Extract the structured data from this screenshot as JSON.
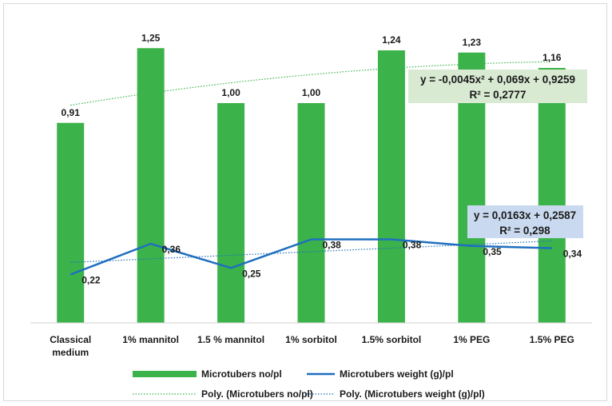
{
  "chart_data": {
    "type": "bar",
    "categories": [
      "Classical medium",
      "1% mannitol",
      "1.5 % mannitol",
      "1% sorbitol",
      "1.5% sorbitol",
      "1% PEG",
      "1.5% PEG"
    ],
    "category_lines": [
      [
        "Classical",
        "medium"
      ],
      [
        "1% mannitol"
      ],
      [
        "1.5 % mannitol"
      ],
      [
        "1% sorbitol"
      ],
      [
        "1.5% sorbitol"
      ],
      [
        "1% PEG"
      ],
      [
        "1.5% PEG"
      ]
    ],
    "ylim": [
      0,
      1.4
    ],
    "grid": false,
    "legend_position": "bottom",
    "series": [
      {
        "name": "Microtubers no/pl",
        "type": "bar",
        "color": "#3cb34a",
        "values": [
          0.91,
          1.25,
          1.0,
          1.0,
          1.24,
          1.23,
          1.16
        ],
        "value_labels": [
          "0,91",
          "1,25",
          "1,00",
          "1,00",
          "1,24",
          "1,23",
          "1,16"
        ]
      },
      {
        "name": "Microtubers weight (g)/pl",
        "type": "line",
        "color": "#1f6fbf",
        "values": [
          0.22,
          0.36,
          0.25,
          0.38,
          0.38,
          0.35,
          0.34
        ],
        "value_labels": [
          "0,22",
          "0,36",
          "0,25",
          "0,38",
          "0,38",
          "0,35",
          "0,34"
        ]
      }
    ],
    "trendlines": [
      {
        "name": "Poly. (Microtubers no/pl)",
        "color": "#3cb34a",
        "kind": "polynomial",
        "coefficients": [
          -0.0045,
          0.069,
          0.9259
        ],
        "equation": "y = -0,0045x² + 0,069x + 0,9259",
        "r2": "R² = 0,2777",
        "box_color": "#d9ead3"
      },
      {
        "name": "Poly. (Microtubers weight (g)/pl)",
        "color": "#1f6fbf",
        "kind": "linear",
        "coefficients": [
          0.0163,
          0.2587
        ],
        "equation": "y = 0,0163x + 0,2587",
        "r2": "R² = 0,298",
        "box_color": "#c9daf0"
      }
    ]
  }
}
